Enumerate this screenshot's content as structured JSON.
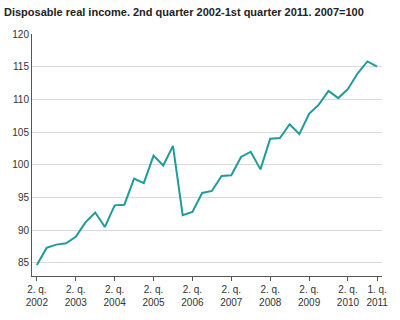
{
  "chart_data": {
    "type": "line",
    "title": "Disposable real income. 2nd quarter 2002-1st quarter 2011. 2007=100",
    "categories": [
      "2. q. 2002",
      null,
      null,
      null,
      "2. q. 2003",
      null,
      null,
      null,
      "2. q. 2004",
      null,
      null,
      null,
      "2. q. 2005",
      null,
      null,
      null,
      "2. q. 2006",
      null,
      null,
      null,
      "2. q. 2007",
      null,
      null,
      null,
      "2. q. 2008",
      null,
      null,
      null,
      "2. q. 2009",
      null,
      null,
      null,
      "2. q. 2010",
      null,
      null,
      "1. q. 2011"
    ],
    "values": [
      84.7,
      87.3,
      87.8,
      88.0,
      89.0,
      91.2,
      92.7,
      90.5,
      93.8,
      93.9,
      97.9,
      97.2,
      101.4,
      99.9,
      102.9,
      92.3,
      92.8,
      95.7,
      96.0,
      98.3,
      98.4,
      101.2,
      102.0,
      99.3,
      104.0,
      104.1,
      106.2,
      104.7,
      107.8,
      109.2,
      111.3,
      110.2,
      111.6,
      114.0,
      115.8,
      115.0
    ],
    "color": "#1f9c9a",
    "ylim": [
      83,
      120
    ],
    "yticks": [
      85,
      90,
      95,
      100,
      105,
      110,
      115,
      120
    ],
    "grid": true
  }
}
